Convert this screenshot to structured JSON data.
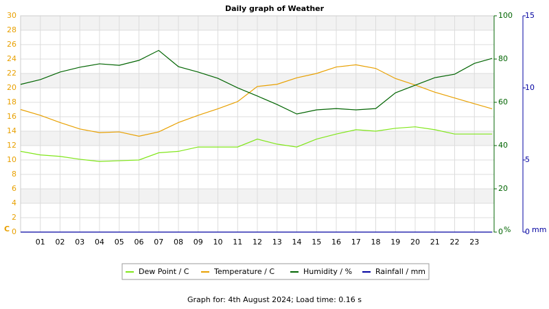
{
  "chart_data": {
    "type": "line",
    "title": "Daily graph of Weather",
    "x": [
      0,
      1,
      2,
      3,
      4,
      5,
      6,
      7,
      8,
      9,
      10,
      11,
      12,
      13,
      14,
      15,
      16,
      17,
      18,
      19,
      20,
      21,
      22,
      23,
      23.9
    ],
    "xlim": [
      0,
      24
    ],
    "xticks": [
      {
        "value": 1,
        "label": "01"
      },
      {
        "value": 2,
        "label": "02"
      },
      {
        "value": 3,
        "label": "03"
      },
      {
        "value": 4,
        "label": "04"
      },
      {
        "value": 5,
        "label": "05"
      },
      {
        "value": 6,
        "label": "06"
      },
      {
        "value": 7,
        "label": "07"
      },
      {
        "value": 8,
        "label": "08"
      },
      {
        "value": 9,
        "label": "09"
      },
      {
        "value": 10,
        "label": "10"
      },
      {
        "value": 11,
        "label": "11"
      },
      {
        "value": 12,
        "label": "12"
      },
      {
        "value": 13,
        "label": "13"
      },
      {
        "value": 14,
        "label": "14"
      },
      {
        "value": 15,
        "label": "15"
      },
      {
        "value": 16,
        "label": "16"
      },
      {
        "value": 17,
        "label": "17"
      },
      {
        "value": 18,
        "label": "18"
      },
      {
        "value": 19,
        "label": "19"
      },
      {
        "value": 20,
        "label": "20"
      },
      {
        "value": 21,
        "label": "21"
      },
      {
        "value": 22,
        "label": "22"
      },
      {
        "value": 23,
        "label": "23"
      }
    ],
    "y_label": "C",
    "ylim": [
      0,
      30
    ],
    "yticks": [
      0,
      2,
      4,
      6,
      8,
      10,
      12,
      14,
      16,
      18,
      20,
      22,
      24,
      26,
      28,
      30
    ],
    "y2_label": "%",
    "y2lim": [
      0,
      100
    ],
    "y2ticks": [
      0,
      20,
      40,
      60,
      80,
      100
    ],
    "y3_label": "mm",
    "y3lim": [
      0,
      15
    ],
    "y3ticks": [
      0,
      5,
      10,
      15
    ],
    "grid": true,
    "series": [
      {
        "name": "Dew Point / C",
        "color": "#80e619",
        "axis": "y",
        "values": [
          11.2,
          10.7,
          10.5,
          10.1,
          9.8,
          9.9,
          10.0,
          11.0,
          11.2,
          11.8,
          11.8,
          11.8,
          12.9,
          12.2,
          11.8,
          12.9,
          13.6,
          14.2,
          14.0,
          14.4,
          14.6,
          14.2,
          13.6,
          13.6,
          13.6
        ]
      },
      {
        "name": "Temperature / C",
        "color": "#e8a000",
        "axis": "y",
        "values": [
          17.0,
          16.2,
          15.2,
          14.3,
          13.8,
          13.9,
          13.3,
          13.9,
          15.2,
          16.2,
          17.1,
          18.1,
          20.2,
          20.5,
          21.4,
          22.0,
          22.9,
          23.2,
          22.7,
          21.3,
          20.4,
          19.4,
          18.6,
          17.8,
          17.1
        ]
      },
      {
        "name": "Humidity / %",
        "color": "#006400",
        "axis": "y2",
        "values": [
          68.3,
          70.5,
          74.0,
          76.2,
          77.8,
          77.1,
          79.4,
          84.0,
          76.5,
          74.0,
          71.1,
          66.7,
          62.9,
          59.0,
          54.6,
          56.5,
          57.1,
          56.5,
          57.1,
          64.4,
          67.9,
          71.4,
          73.0,
          78.0,
          80.3
        ]
      },
      {
        "name": "Rainfall / mm",
        "color": "#0000a0",
        "axis": "y3",
        "values": [
          0,
          0,
          0,
          0,
          0,
          0,
          0,
          0,
          0,
          0,
          0,
          0,
          0,
          0,
          0,
          0,
          0,
          0,
          0,
          0,
          0,
          0,
          0,
          0,
          0
        ]
      }
    ]
  },
  "footer": "Graph for: 4th August 2024; Load time: 0.16 s"
}
